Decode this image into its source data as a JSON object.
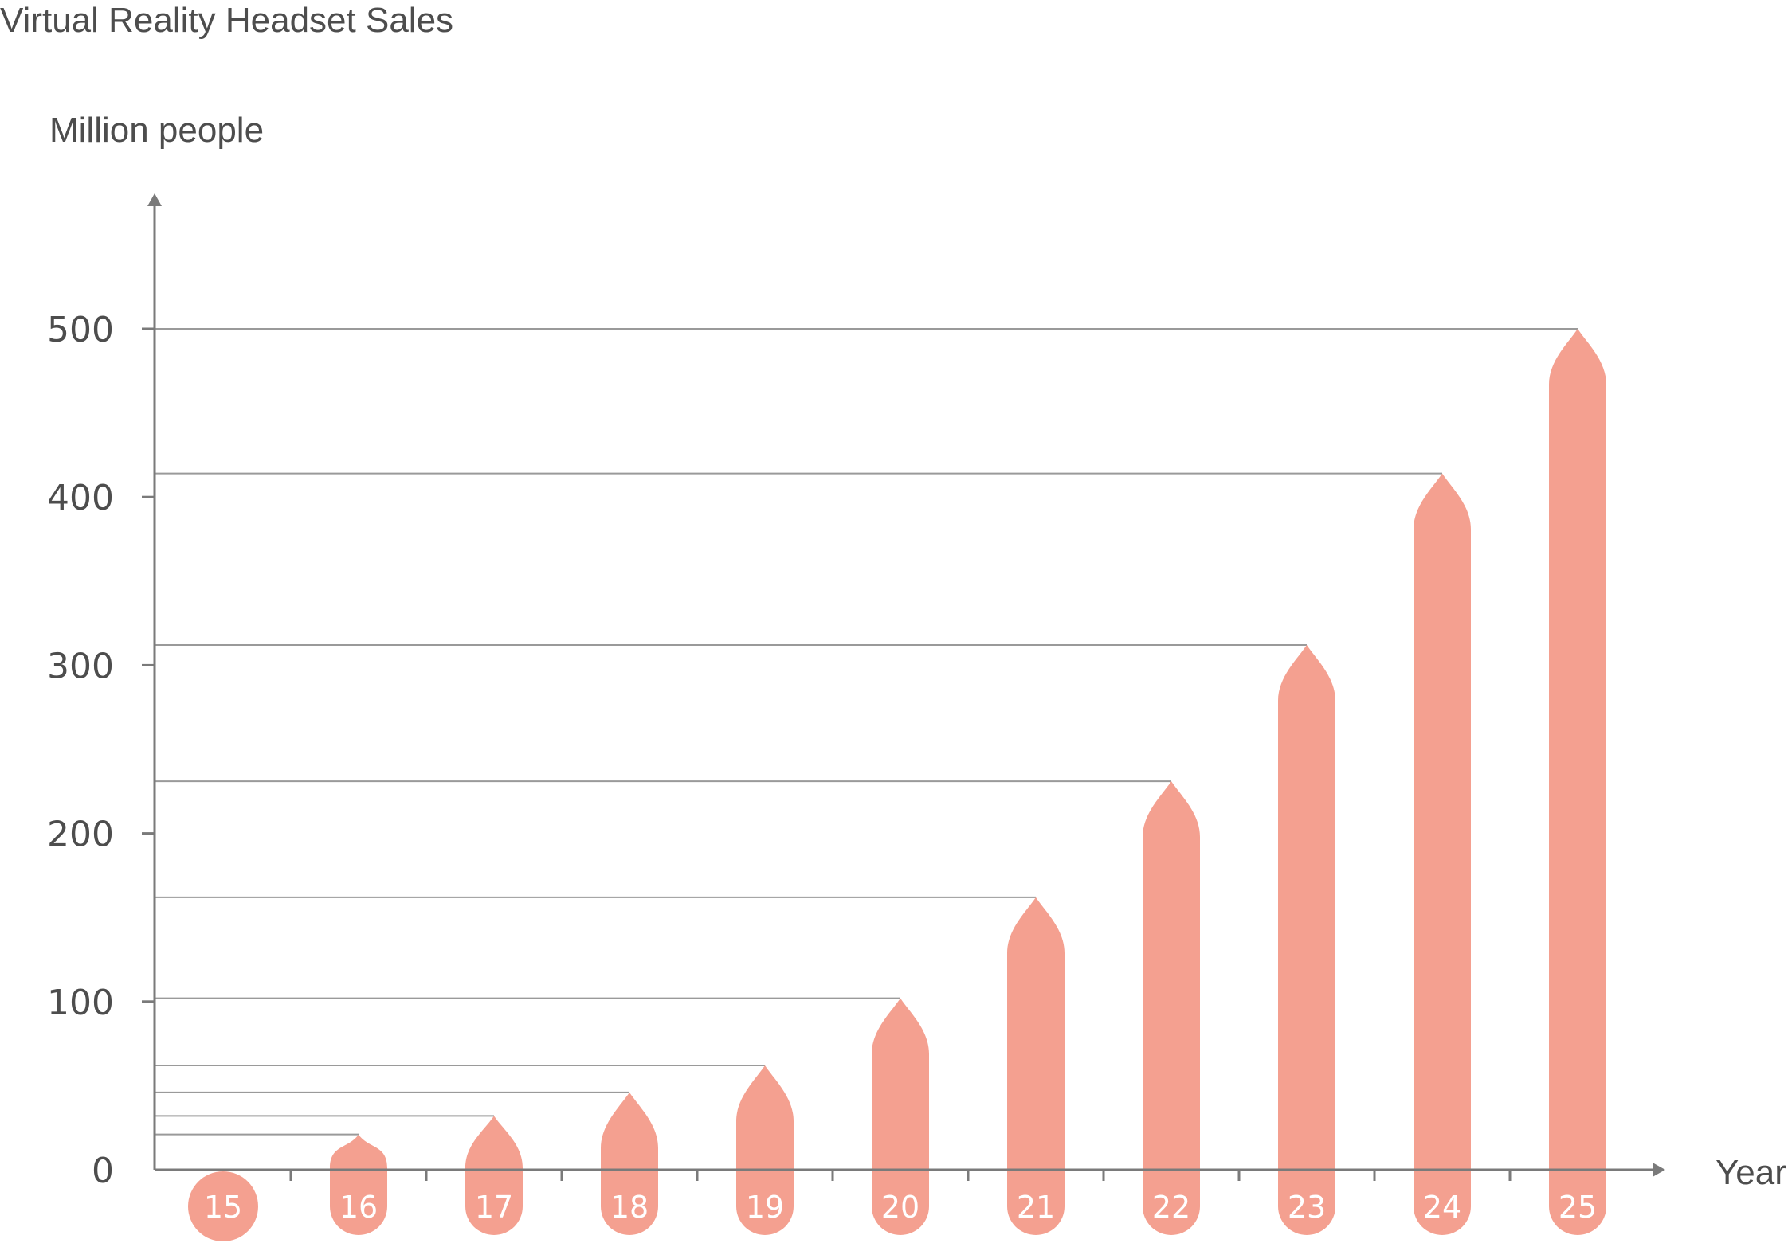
{
  "chart_data": {
    "type": "bar",
    "title": "Virtual Reality Headset Sales",
    "ylabel": "Million people",
    "xlabel": "Year",
    "categories": [
      "15",
      "16",
      "17",
      "18",
      "19",
      "20",
      "21",
      "22",
      "23",
      "24",
      "25"
    ],
    "values": [
      0,
      21,
      32,
      46,
      62,
      102,
      162,
      231,
      312,
      414,
      500
    ],
    "ylim": [
      0,
      500
    ],
    "yticks": [
      "0",
      "100",
      "200",
      "300",
      "400",
      "500"
    ],
    "grid": false,
    "colors": {
      "bar": "#f4a090",
      "axis": "#7a7a7a",
      "guide": "#9a9a9a",
      "text": "#4d4d4d"
    }
  }
}
